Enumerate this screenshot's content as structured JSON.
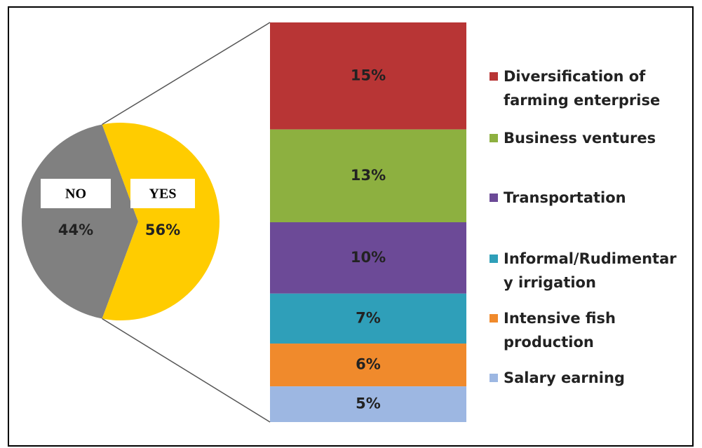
{
  "chart_data": [
    {
      "type": "pie",
      "categories": [
        "NO",
        "YES"
      ],
      "values": [
        44,
        56
      ],
      "value_labels": [
        "44%",
        "56%"
      ],
      "colors": [
        "#808080",
        "#ffcc00"
      ]
    },
    {
      "type": "stacked_bar",
      "series": [
        {
          "name": "Diversification of farming enterprise",
          "color": "#b83535",
          "values": [
            15
          ],
          "value_labels": [
            "15%"
          ]
        },
        {
          "name": "Business ventures",
          "color": "#8db040",
          "values": [
            13
          ],
          "value_labels": [
            "13%"
          ]
        },
        {
          "name": "Transportation",
          "color": "#6c4a97",
          "values": [
            10
          ],
          "value_labels": [
            "10%"
          ]
        },
        {
          "name": "Informal/Rudimentary irrigation",
          "color": "#2f9fb9",
          "values": [
            7
          ],
          "value_labels": [
            "7%"
          ]
        },
        {
          "name": "Intensive fish production",
          "color": "#f08a2c",
          "values": [
            6
          ],
          "value_labels": [
            "6%"
          ]
        },
        {
          "name": "Salary earning",
          "color": "#9db7e2",
          "values": [
            5
          ],
          "value_labels": [
            "5%"
          ]
        }
      ]
    }
  ]
}
